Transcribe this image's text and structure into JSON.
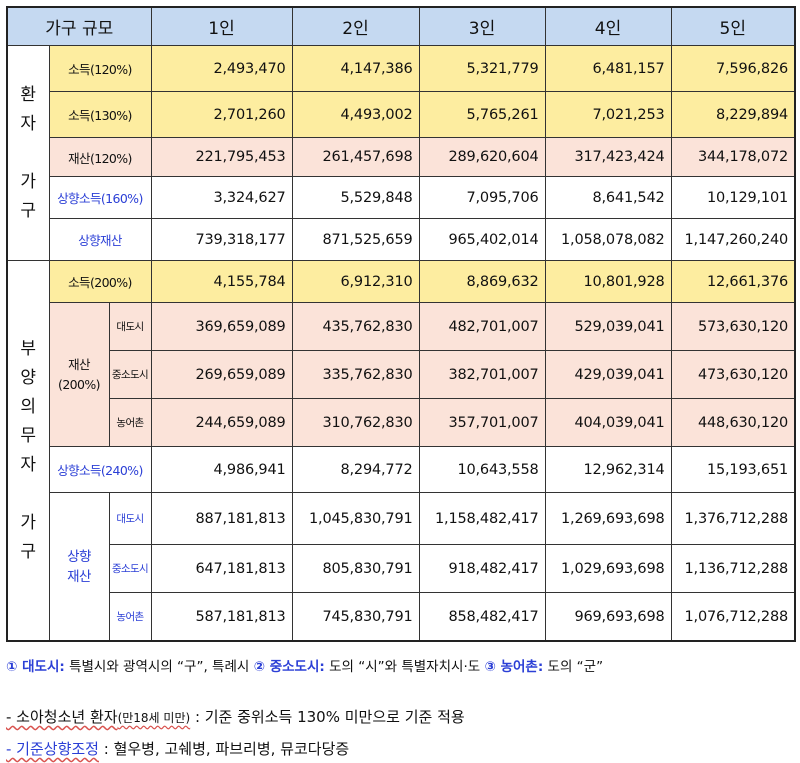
{
  "header": {
    "col0": "가구 규모",
    "cols": [
      "1인",
      "2인",
      "3인",
      "4인",
      "5인"
    ]
  },
  "patient": {
    "group_label": "환자가구",
    "rows": [
      {
        "label": "소득(120%)",
        "values": [
          "2,493,470",
          "4,147,386",
          "5,321,779",
          "6,481,157",
          "7,596,826"
        ]
      },
      {
        "label": "소득(130%)",
        "values": [
          "2,701,260",
          "4,493,002",
          "5,765,261",
          "7,021,253",
          "8,229,894"
        ]
      },
      {
        "label": "재산(120%)",
        "values": [
          "221,795,453",
          "261,457,698",
          "289,620,604",
          "317,423,424",
          "344,178,072"
        ]
      },
      {
        "label": "상향소득(160%)",
        "values": [
          "3,324,627",
          "5,529,848",
          "7,095,706",
          "8,641,542",
          "10,129,101"
        ]
      },
      {
        "label": "상향재산",
        "values": [
          "739,318,177",
          "871,525,659",
          "965,402,014",
          "1,058,078,082",
          "1,147,260,240"
        ]
      }
    ]
  },
  "support": {
    "group_label": "부양의무자가구",
    "income": {
      "label": "소득(200%)",
      "values": [
        "4,155,784",
        "6,912,310",
        "8,869,632",
        "10,801,928",
        "12,661,376"
      ]
    },
    "property": {
      "label": "재산(200%)",
      "rows": [
        {
          "sub": "대도시",
          "values": [
            "369,659,089",
            "435,762,830",
            "482,701,007",
            "529,039,041",
            "573,630,120"
          ]
        },
        {
          "sub": "중소도시",
          "values": [
            "269,659,089",
            "335,762,830",
            "382,701,007",
            "429,039,041",
            "473,630,120"
          ]
        },
        {
          "sub": "농어촌",
          "values": [
            "244,659,089",
            "310,762,830",
            "357,701,007",
            "404,039,041",
            "448,630,120"
          ]
        }
      ]
    },
    "up_income": {
      "label": "상향소득(240%)",
      "values": [
        "4,986,941",
        "8,294,772",
        "10,643,558",
        "12,962,314",
        "15,193,651"
      ]
    },
    "up_property": {
      "label": "상향재산",
      "rows": [
        {
          "sub": "대도시",
          "values": [
            "887,181,813",
            "1,045,830,791",
            "1,158,482,417",
            "1,269,693,698",
            "1,376,712,288"
          ]
        },
        {
          "sub": "중소도시",
          "values": [
            "647,181,813",
            "805,830,791",
            "918,482,417",
            "1,029,693,698",
            "1,136,712,288"
          ]
        },
        {
          "sub": "농어촌",
          "values": [
            "587,181,813",
            "745,830,791",
            "858,482,417",
            "969,693,698",
            "1,076,712,288"
          ]
        }
      ]
    }
  },
  "notes": {
    "n1_k1": "① 대도시:",
    "n1_d1": " 특별시와 광역시의 “구”, 특례시 ",
    "n1_k2": "② 중소도시:",
    "n1_d2": " 도의 “시”와 특별자치시·도 ",
    "n1_k3": "③ 농어촌:",
    "n1_d3": " 도의 “군”",
    "n2_a": "- 소아청소년 환자",
    "n2_b": "(만18세 미만)",
    "n2_c": " : 기준 중위소득 130% 미만으로 기준 적용",
    "n3_a": "- 기준상향조정",
    "n3_b": " : 혈우병, 고쉐병, 파브리병, 뮤코다당증"
  }
}
